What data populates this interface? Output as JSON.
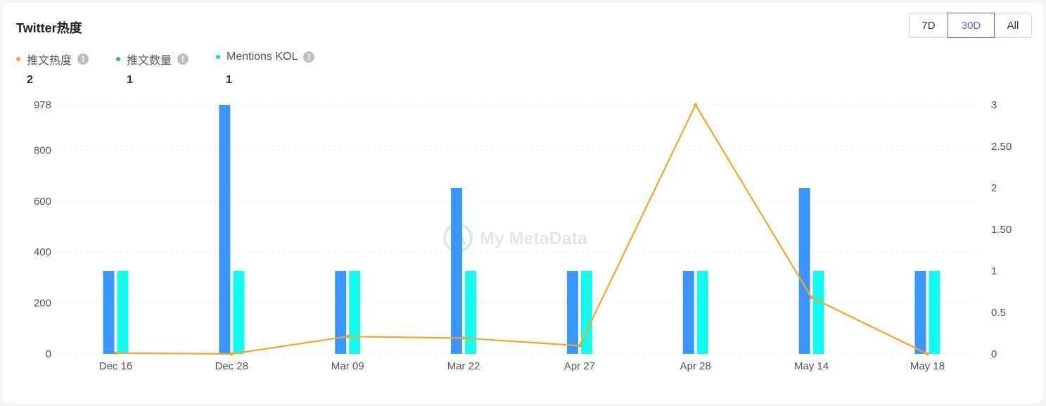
{
  "card": {
    "title": "Twitter热度",
    "range_buttons": [
      "7D",
      "30D",
      "All"
    ],
    "active_range": "30D"
  },
  "legend": [
    {
      "label": "推文热度",
      "value": "2",
      "color": "#f5a623"
    },
    {
      "label": "推文数量",
      "value": "1",
      "color": "#3a97ff"
    },
    {
      "label": "Mentions KOL",
      "value": "1",
      "color": "#13d6d6"
    }
  ],
  "watermark": "My MetaData",
  "chart_data": {
    "type": "bar",
    "categories": [
      "Dec 16",
      "Dec 28",
      "Mar 09",
      "Mar 22",
      "Apr 27",
      "Apr 28",
      "May 14",
      "May 18"
    ],
    "series": [
      {
        "name": "推文数量",
        "type": "bar",
        "axis": "left",
        "values": [
          326,
          978,
          326,
          652,
          326,
          326,
          652,
          326
        ],
        "color": "#3a97ff"
      },
      {
        "name": "Mentions KOL",
        "type": "bar",
        "axis": "left",
        "values": [
          326,
          326,
          326,
          326,
          326,
          326,
          326,
          326
        ],
        "color": "#13fbf0"
      },
      {
        "name": "推文热度",
        "type": "line",
        "axis": "right",
        "values": [
          0.01,
          0.0,
          0.21,
          0.19,
          0.1,
          3.0,
          0.68,
          0.0
        ],
        "color": "#f5a623"
      }
    ],
    "y_left": {
      "min": 0,
      "max": 978,
      "ticks": [
        0,
        200,
        400,
        600,
        800,
        978
      ],
      "tick_labels": [
        "0",
        "200",
        "400",
        "600",
        "800",
        "978"
      ]
    },
    "y_right": {
      "min": 0,
      "max": 3,
      "ticks": [
        0,
        0.5,
        1,
        1.5,
        2,
        2.5,
        3
      ],
      "tick_labels": [
        "0",
        "0.5",
        "1",
        "1.50",
        "2",
        "2.50",
        "3"
      ]
    },
    "grid": true
  }
}
